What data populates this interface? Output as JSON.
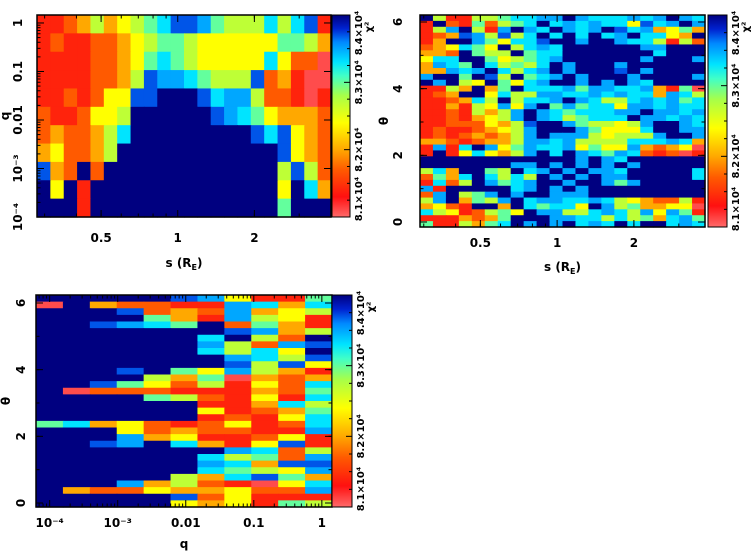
{
  "chart_data": {
    "type": "heatmap",
    "colorbar": {
      "label": "χ²",
      "range": [
        81000,
        84000
      ],
      "tick_labels": [
        "8.1×10⁴",
        "8.2×10⁴",
        "8.3×10⁴",
        "8.4×10⁴"
      ],
      "tick_values": [
        81000,
        82000,
        83000,
        84000
      ]
    },
    "level_codes": {
      "r": 81100,
      "R": 81400,
      "O": 81700,
      "o": 82000,
      "Y": 82400,
      "y": 82700,
      "G": 83000,
      "C": 83300,
      "L": 83500,
      "B": 83700,
      "N": 84000
    },
    "panels": [
      {
        "id": "s-q",
        "xlabel": {
          "main": "s (R",
          "sub": "E",
          "close": ")"
        },
        "ylabel": "q",
        "xscale": "log",
        "yscale": "log",
        "xlim": [
          0.28,
          4.0
        ],
        "ylim": [
          0.0001,
          1.46
        ],
        "xticks": [
          {
            "v": 0.5,
            "label": "0.5"
          },
          {
            "v": 1,
            "label": "1"
          },
          {
            "v": 2,
            "label": "2"
          }
        ],
        "yticks": [
          {
            "v": 1,
            "label": "1"
          },
          {
            "v": 0.1,
            "label": "0.1"
          },
          {
            "v": 0.01,
            "label": "0.01"
          },
          {
            "v": 0.001,
            "label": "10⁻³"
          },
          {
            "v": 0.0001,
            "label": "10⁻⁴"
          }
        ],
        "grid_rows_top_to_bottom": [
          "RROoyoYyGCBBLGyyyCyCBR",
          "RORROOoYyGGyYYYYYYGGyo",
          "RRRROOoYGCGyYYYYYCYOOr",
          "RRRROOoyBLLCGyyyBOoRrr",
          "RROROYYBBNNNBCLLyOORrR",
          "ORROYYyNNNNNNBLCGYoooO",
          "OoOOoyCNNNNNNNNNBCBYoO",
          "oYOOoyNNNNNNNNNNNNBYoO",
          "BoONONNNNNNNNNNNNNyByO",
          "NYNRNNNNNNNNNNNNNNYNCo",
          "NNNRNNNNNNNNNNNNNNGNNN"
        ]
      },
      {
        "id": "s-theta",
        "xlabel": {
          "main": "s (R",
          "sub": "E",
          "close": ")"
        },
        "ylabel": "θ",
        "xscale": "log",
        "yscale": "linear",
        "xlim": [
          0.29,
          3.8
        ],
        "ylim": [
          -0.15,
          6.21
        ],
        "xticks": [
          {
            "v": 0.5,
            "label": "0.5"
          },
          {
            "v": 1,
            "label": "1"
          },
          {
            "v": 2,
            "label": "2"
          }
        ],
        "yticks": [
          {
            "v": 0,
            "label": "0"
          },
          {
            "v": 2,
            "label": "2"
          },
          {
            "v": 4,
            "label": "4"
          },
          {
            "v": 6,
            "label": "6"
          }
        ],
        "grid_rows_top_to_bottom": [
          "NyRRyyGCCLLNLCCCLCLNLC",
          "RNORGOyGCNCLCLCCYBCLNL",
          "RyLNyRLNLCNLCLNBCLoYGo",
          "ROoBLyByCNCNCNCLNCCYoN",
          "RoNNLGYCCBNNLNNLCCyRyO",
          "OoYCGYNyCLCNNNNNNLLNNN",
          "ooONGyyNGCCNNNNNNNCNNN",
          "YCCNNGYyGCLNNNNNNLNNNL",
          "oLCGNCyGyCNLNNNLNNNNNN",
          "ooLCLNCyCLNLNNNBNLNNNN",
          "LNNGNByNGCLNLNNNLNNNNL",
          "NLNyYNGYCLNNLNLNLCNNNN",
          "RRyoNoGNCCCLGLLCCLoRGr",
          "ROoNNYCyyLLCCLCLCCoLCy",
          "RROoCyNyCCLNLCyyCLCLGC",
          "RRoRyYLYLNGLGCCYLLCLCC",
          "RRORyoyLNLCGCCCLLNLLCL",
          "RRORoYyLNLCyGCCCNLLCLC",
          "RROOOYoyBNNLGyyYyLNNLC",
          "RORROoYyLNNNLGYYYCNNLL",
          "ROROoOoyLNLLLyYyyyLNNL",
          "ooOROooyLLCLyyyyCCCLCo",
          "RLRCNLYGLCCLYGYYLoOoYr",
          "RNRYCYoyLNCNLCGLCOROrR",
          "NNNNNNNNNNNNLNLCNNNNNN",
          "NNNNNNNLLNLNLNLNLNNNNN",
          "yCoNNGyNCLNLNLLCNNNNNC",
          "OGoCNCyCyNLNLNLLNNNNNC",
          "RCOyNLGCLNNLNNLGLNNNNN",
          "LRNNNNNCLNLNLNNNNNNNNN",
          "OLNyGLNLNNLLLNNNNNNNNN",
          "yLNoGyLNCLLCCLCyYoOOyR",
          "oYORNNoNCGCCYNLyGooYYr",
          "CyYROyGYNLLyyCLCyLYLGR",
          "RRRoOoGNNNLLCCyCyGoCLG",
          "GRRyoGCNLNLNCLCNCNNCLC"
        ]
      },
      {
        "id": "q-theta",
        "xlabel": {
          "main": "q",
          "sub": "",
          "close": ""
        },
        "ylabel": "θ",
        "xscale": "log",
        "yscale": "linear",
        "xlim": [
          6.3e-05,
          1.41
        ],
        "ylim": [
          -0.12,
          6.24
        ],
        "xticks": [
          {
            "v": 0.0001,
            "label": "10⁻⁴"
          },
          {
            "v": 0.001,
            "label": "10⁻³"
          },
          {
            "v": 0.01,
            "label": "0.01"
          },
          {
            "v": 0.1,
            "label": "0.1"
          },
          {
            "v": 1,
            "label": "1"
          }
        ],
        "yticks": [
          {
            "v": 0,
            "label": "0"
          },
          {
            "v": 2,
            "label": "2"
          },
          {
            "v": 4,
            "label": "4"
          },
          {
            "v": 6,
            "label": "6"
          }
        ],
        "grid_rows_top_to_bottom": [
          "NNNNNBLYRRG",
          "rNoOORRLCoC",
          "NNNBOoOLoYy",
          "NNNNGoRLyYR",
          "NNBLCGNOGoR",
          "NNNNNNNBLoy",
          "NNNNNNCNyON",
          "NNNNNNLyOLB",
          "NNNNNNCyCYN",
          "NNNNNNNLCyB",
          "NNNNNNNByBY",
          "NNNBNGYLyoR",
          "NNNNyoGroOo",
          "NNBGYOyRYOC",
          "NrOOORRRoOG",
          "NNNNGyORYRC",
          "NNNNNNRRoCy",
          "NNNNNNYROoG",
          "NNNNNNRORYC",
          "GCoYOROYROC",
          "NNNYOoOORRL",
          "NNNLoYRROYR",
          "NNBLNCoRYBR",
          "NNNNNNNLCOy",
          "NNNNNNCyGOL",
          "NNNNNNLCoBB",
          "NNNNNNCGyYL",
          "NNNNNyoCBGo",
          "NNNLoyORrYC",
          "NoOOYooYOOL",
          "NNNNNBOYRRR",
          "NNNNNYoYRGy"
        ]
      }
    ]
  }
}
